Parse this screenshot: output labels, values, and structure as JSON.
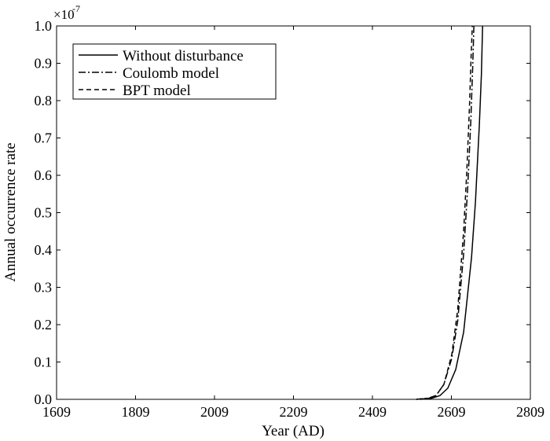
{
  "chart_data": {
    "type": "line",
    "title": "",
    "xlabel": "Year (AD)",
    "ylabel": "Annual occurrence rate",
    "y_multiplier": "×10",
    "y_exponent": "-7",
    "xlim": [
      1609,
      2809
    ],
    "ylim": [
      0,
      1.0
    ],
    "x_ticks": [
      "1609",
      "1809",
      "2009",
      "2209",
      "2409",
      "2609",
      "2809"
    ],
    "y_ticks": [
      "0.0",
      "0.1",
      "0.2",
      "0.3",
      "0.4",
      "0.5",
      "0.6",
      "0.7",
      "0.8",
      "0.9",
      "1.0"
    ],
    "grid": false,
    "legend_position": "top-left",
    "series": [
      {
        "name": "Without disturbance",
        "line_style": "solid",
        "x": [
          2530,
          2560,
          2580,
          2600,
          2620,
          2640,
          2660,
          2670,
          2680,
          2685,
          2688
        ],
        "y": [
          0.0,
          0.003,
          0.01,
          0.03,
          0.08,
          0.18,
          0.38,
          0.53,
          0.74,
          0.87,
          1.0
        ]
      },
      {
        "name": "Coulomb model",
        "line_style": "dash-dot",
        "x": [
          2520,
          2550,
          2570,
          2590,
          2610,
          2625,
          2640,
          2650,
          2658,
          2663,
          2666
        ],
        "y": [
          0.0,
          0.003,
          0.01,
          0.04,
          0.11,
          0.21,
          0.39,
          0.56,
          0.74,
          0.89,
          1.0
        ]
      },
      {
        "name": "BPT model",
        "line_style": "dashed",
        "x": [
          2520,
          2550,
          2570,
          2590,
          2610,
          2625,
          2640,
          2648,
          2655,
          2659,
          2662
        ],
        "y": [
          0.0,
          0.003,
          0.01,
          0.04,
          0.12,
          0.24,
          0.45,
          0.61,
          0.79,
          0.92,
          1.0
        ]
      }
    ]
  }
}
